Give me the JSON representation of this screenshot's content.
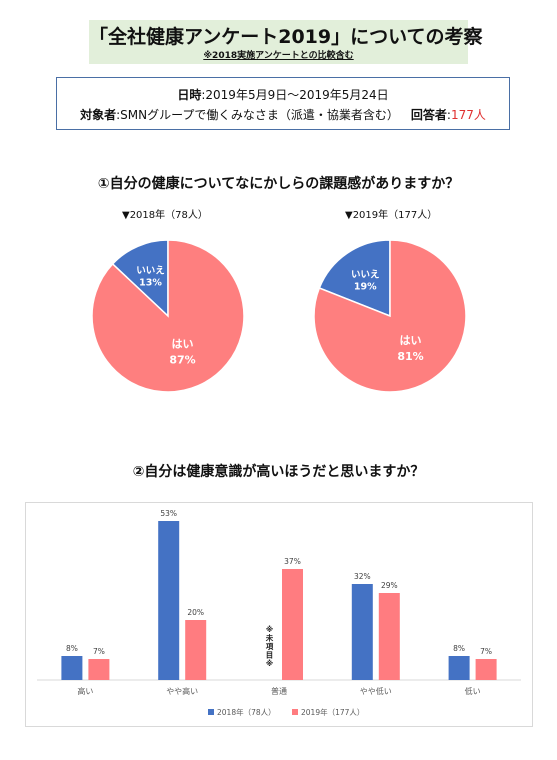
{
  "header": {
    "title": "「全社健康アンケート2019」についての考察",
    "subtitle": "※2018実施アンケートとの比較含む"
  },
  "info": {
    "date_label": "日時",
    "date_value": ":2019年5月9日～2019年5月24日",
    "target_label": "対象者",
    "target_value": ":SMNグループで働くみなさま（派遣・協業者含む）",
    "respondents_label": "回答者",
    "respondents_sep": ":",
    "respondents_value": "177人"
  },
  "colors": {
    "yes": "#fe7f7f",
    "no": "#4472c4",
    "y2018": "#4472c4",
    "y2019": "#ff7c80"
  },
  "chart_data": [
    {
      "type": "pie",
      "title": "①自分の健康についてなにかしらの課題感がありますか？",
      "caption": "▼2018年（78人）",
      "slices": [
        {
          "label": "いいえ",
          "value": 13,
          "value_label": "13%"
        },
        {
          "label": "はい",
          "value": 87,
          "value_label": "87%"
        }
      ]
    },
    {
      "type": "pie",
      "caption": "▼2019年（177人）",
      "slices": [
        {
          "label": "いいえ",
          "value": 19,
          "value_label": "19%"
        },
        {
          "label": "はい",
          "value": 81,
          "value_label": "81%"
        }
      ]
    },
    {
      "type": "bar",
      "title": "②自分は健康意識が高いほうだと思いますか？",
      "categories": [
        "高い",
        "やや高い",
        "普通",
        "やや低い",
        "低い"
      ],
      "series": [
        {
          "name": "2018年（78人）",
          "values": [
            8,
            53,
            null,
            32,
            8
          ],
          "labels": [
            "8%",
            "53%",
            "",
            "32%",
            "8%"
          ]
        },
        {
          "name": "2019年（177人）",
          "values": [
            7,
            20,
            37,
            29,
            7
          ],
          "labels": [
            "7%",
            "20%",
            "37%",
            "29%",
            "7%"
          ]
        }
      ],
      "note": "※未項目※",
      "ylim": [
        0,
        60
      ],
      "legend": "bottom",
      "grid": false
    }
  ]
}
